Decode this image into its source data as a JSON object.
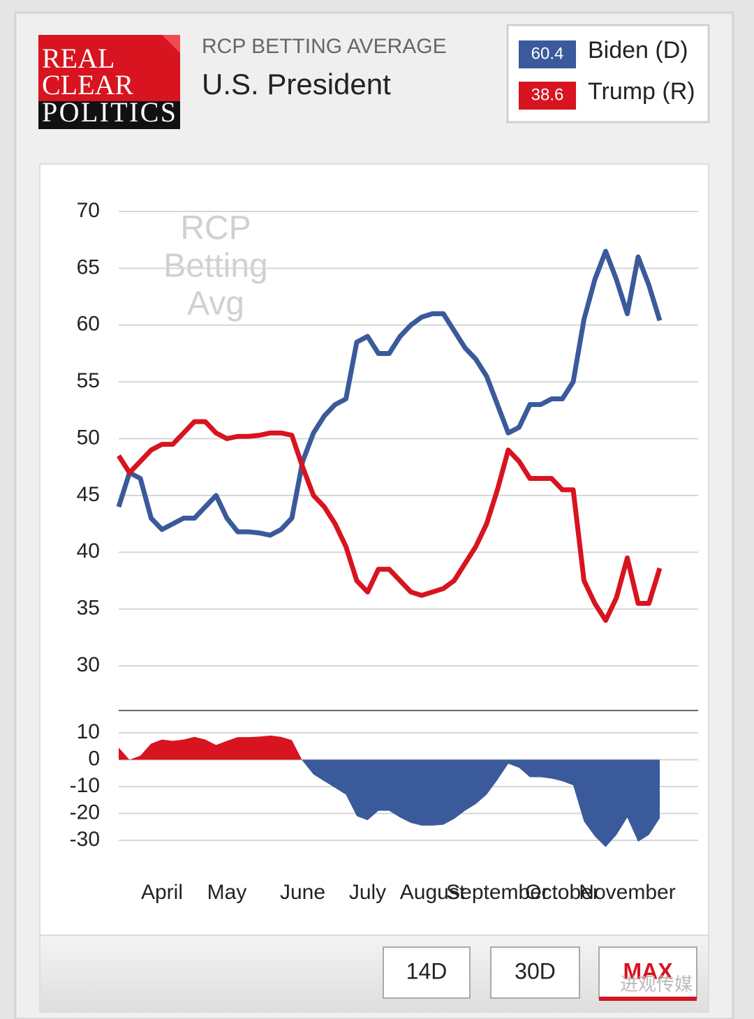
{
  "header": {
    "logo": [
      "REAL",
      "CLEAR",
      "POLITICS"
    ],
    "subtitle": "RCP BETTING AVERAGE",
    "title": "U.S. President"
  },
  "controls": [
    "14D",
    "30D",
    "MAX"
  ],
  "watermark": "进观传媒",
  "chart_data": [
    {
      "type": "line",
      "watermark": [
        "RCP",
        "Betting",
        "Avg"
      ],
      "categories": [
        null,
        null,
        null,
        null,
        "April",
        null,
        null,
        null,
        null,
        null,
        "May",
        null,
        null,
        null,
        null,
        null,
        null,
        "June",
        null,
        null,
        null,
        null,
        null,
        "July",
        null,
        null,
        null,
        null,
        null,
        "August",
        null,
        null,
        null,
        null,
        null,
        "September",
        null,
        null,
        null,
        null,
        null,
        "October",
        null,
        null,
        null,
        null,
        null,
        "November",
        null,
        null,
        null
      ],
      "series": [
        {
          "name": "Biden (D)",
          "color": "#3a5a9b",
          "values": [
            44,
            47,
            46.5,
            43,
            42,
            42.5,
            43,
            43,
            44,
            45,
            43,
            41.8,
            41.8,
            41.7,
            41.5,
            42,
            43,
            48,
            50.5,
            52,
            53,
            53.5,
            58.5,
            59,
            57.5,
            57.5,
            59,
            60,
            60.7,
            61,
            61,
            59.5,
            58,
            57,
            55.5,
            53,
            50.5,
            51,
            53,
            53,
            53.5,
            53.5,
            55,
            60.5,
            64,
            66.5,
            64,
            61,
            66,
            63.5,
            60.4
          ]
        },
        {
          "name": "Trump (R)",
          "color": "#d7141f",
          "values": [
            48.5,
            47,
            48,
            49,
            49.5,
            49.5,
            50.5,
            51.5,
            51.5,
            50.5,
            50,
            50.2,
            50.2,
            50.3,
            50.5,
            50.5,
            50.3,
            47.5,
            45,
            44,
            42.5,
            40.5,
            37.5,
            36.5,
            38.5,
            38.5,
            37.5,
            36.5,
            36.2,
            36.5,
            36.8,
            37.5,
            39,
            40.5,
            42.5,
            45.5,
            49,
            48,
            46.5,
            46.5,
            46.5,
            45.5,
            45.5,
            37.5,
            35.5,
            34,
            36,
            39.5,
            35.5,
            35.5,
            38.6
          ]
        }
      ],
      "ylim": [
        30,
        70
      ],
      "yticks": [
        30,
        35,
        40,
        45,
        50,
        55,
        60,
        65,
        70
      ],
      "grid": true
    },
    {
      "type": "area",
      "positive_color": "#d7141f",
      "negative_color": "#3a5a9b",
      "values": [
        4.5,
        0,
        1.5,
        6,
        7.5,
        7,
        7.5,
        8.5,
        7.5,
        5.5,
        7,
        8.4,
        8.4,
        8.6,
        9,
        8.5,
        7.3,
        -0.5,
        -5.5,
        -8,
        -10.5,
        -13,
        -21,
        -22.5,
        -19,
        -19,
        -21.5,
        -23.5,
        -24.5,
        -24.5,
        -24.2,
        -22,
        -19,
        -16.5,
        -13,
        -7.5,
        -1.5,
        -3,
        -6.5,
        -6.5,
        -7,
        -8,
        -9.5,
        -23,
        -28.5,
        -32.5,
        -28,
        -21.5,
        -30.5,
        -28,
        -21.8
      ],
      "ylim": [
        -30,
        10
      ],
      "yticks": [
        -30,
        -20,
        -10,
        0,
        10
      ],
      "grid": true
    }
  ]
}
